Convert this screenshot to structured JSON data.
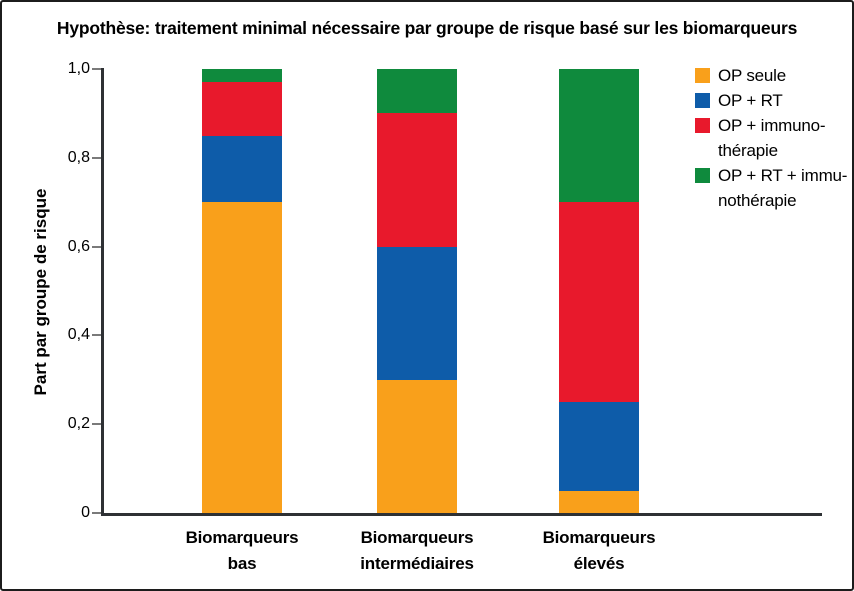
{
  "figure": {
    "background": "#ffffff",
    "border_color": "#1c1c1c",
    "axis_color": "#2e3134",
    "tick_color": "#7a7a7a"
  },
  "chart_data": {
    "type": "bar",
    "stacked": true,
    "grid": false,
    "title": "Hypothèse: traitement minimal nécessaire par groupe de risque basé sur les biomarqueurs",
    "ylabel": "Part par groupe de risque",
    "xlabel": "",
    "ylim": [
      0,
      1
    ],
    "yticks": [
      {
        "value": 0,
        "label": "0"
      },
      {
        "value": 0.2,
        "label": "0,2"
      },
      {
        "value": 0.4,
        "label": "0,4"
      },
      {
        "value": 0.6,
        "label": "0,6"
      },
      {
        "value": 0.8,
        "label": "0,8"
      },
      {
        "value": 1.0,
        "label": "1,0"
      }
    ],
    "categories": [
      {
        "lines": [
          "Biomarqueurs",
          "bas"
        ]
      },
      {
        "lines": [
          "Biomarqueurs",
          "intermédiaires"
        ]
      },
      {
        "lines": [
          "Biomarqueurs",
          "élevés"
        ]
      }
    ],
    "series": [
      {
        "name": "OP seule",
        "legend_lines": [
          "OP seule"
        ],
        "color": "#F9A01B",
        "values": [
          0.7,
          0.3,
          0.05
        ]
      },
      {
        "name": "OP + RT",
        "legend_lines": [
          "OP + RT"
        ],
        "color": "#0E5CA9",
        "values": [
          0.15,
          0.3,
          0.2
        ]
      },
      {
        "name": "OP + immuno-thérapie",
        "legend_lines": [
          "OP + immuno-",
          "thérapie"
        ],
        "color": "#E8192C",
        "values": [
          0.12,
          0.3,
          0.45
        ]
      },
      {
        "name": "OP + RT + immu-nothérapie",
        "legend_lines": [
          "OP + RT + immu-",
          "nothérapie"
        ],
        "color": "#0F8A3D",
        "values": [
          0.03,
          0.1,
          0.3
        ]
      }
    ],
    "legend_position": "top-right"
  }
}
